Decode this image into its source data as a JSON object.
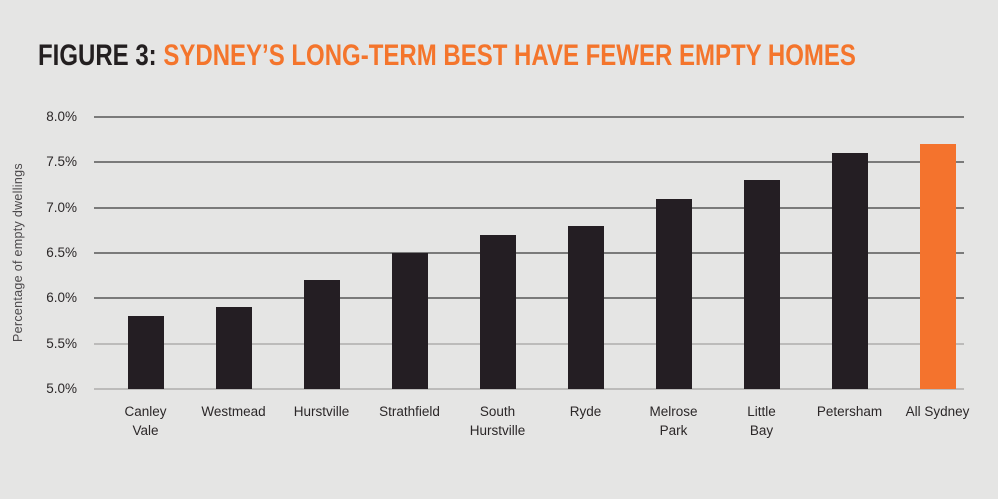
{
  "figure": {
    "label": "FIGURE 3:",
    "title": "SYDNEY’S LONG-TERM BEST HAVE FEWER EMPTY HOMES"
  },
  "colors": {
    "background": "#e5e5e4",
    "title_label": "#231f20",
    "title_text": "#f4752c",
    "bar_dark": "#241e23",
    "bar_highlight": "#f4732d",
    "gridline_dark": "#7a7a7a",
    "gridline_light": "#bcbbba",
    "axis_text": "#2b2728",
    "axis_title_text": "#4c494b"
  },
  "chart_data": {
    "type": "bar",
    "title": "FIGURE 3: SYDNEY’S LONG-TERM BEST HAVE FEWER EMPTY HOMES",
    "xlabel": "",
    "ylabel": "Percentage of empty dwellings",
    "ylim": [
      5.0,
      8.0
    ],
    "y_ticks": [
      8.0,
      7.5,
      7.0,
      6.5,
      6.0,
      5.5,
      5.0
    ],
    "y_tick_labels": [
      "8.0%",
      "7.5%",
      "7.0%",
      "6.5%",
      "6.0%",
      "5.5%",
      "5.0%"
    ],
    "light_gridline_ticks": [
      5.5,
      5.0
    ],
    "categories": [
      "Canley Vale",
      "Westmead",
      "Hurstville",
      "Strathfield",
      "South Hurstville",
      "Ryde",
      "Melrose Park",
      "Little Bay",
      "Petersham",
      "All Sydney"
    ],
    "category_lines": [
      [
        "Canley",
        "Vale"
      ],
      [
        "Westmead"
      ],
      [
        "Hurstville"
      ],
      [
        "Strathfield"
      ],
      [
        "South",
        "Hurstville"
      ],
      [
        "Ryde"
      ],
      [
        "Melrose",
        "Park"
      ],
      [
        "Little",
        "Bay"
      ],
      [
        "Petersham"
      ],
      [
        "All Sydney"
      ]
    ],
    "values": [
      5.8,
      5.9,
      6.2,
      6.5,
      6.7,
      6.8,
      7.1,
      7.3,
      7.6,
      7.7
    ],
    "highlight_category": "All Sydney",
    "grid": true,
    "legend": null
  }
}
